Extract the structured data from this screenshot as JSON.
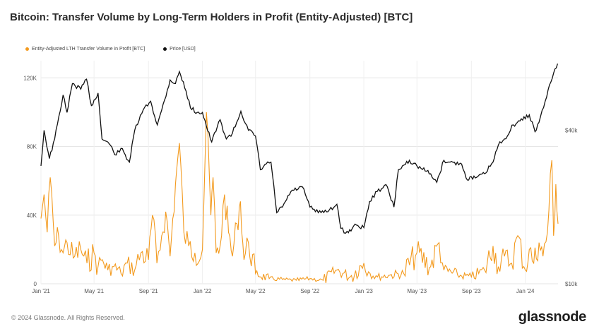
{
  "title": "Bitcoin: Transfer Volume by Long-Term Holders in Profit (Entity-Adjusted) [BTC]",
  "footer": "© 2024 Glassnode. All Rights Reserved.",
  "logo": "glassnode",
  "chart_data": {
    "type": "line",
    "title": "Bitcoin: Transfer Volume by Long-Term Holders in Profit (Entity-Adjusted) [BTC]",
    "legend_placement": "top-left",
    "grid": true,
    "x_ticks": [
      "Jan '21",
      "May '21",
      "Sep '21",
      "Jan '22",
      "May '22",
      "Sep '22",
      "Jan '23",
      "May '23",
      "Sep '23",
      "Jan '24"
    ],
    "x_range": [
      "2021-01-01",
      "2024-03-15"
    ],
    "y_left": {
      "ticks": [
        "0",
        "40K",
        "80K",
        "120K"
      ],
      "range": [
        0,
        130000
      ]
    },
    "y_right": {
      "ticks": [
        "$10k",
        "$40k"
      ],
      "scale": "log",
      "range": [
        10000,
        75000
      ]
    },
    "series": [
      {
        "name": "Entity-Adjusted LTH Transfer Volume in Profit [BTC]",
        "color": "#f39a1e",
        "axis": "left",
        "x": [
          "2021-01-01",
          "2021-01-08",
          "2021-01-15",
          "2021-01-22",
          "2021-02-01",
          "2021-02-10",
          "2021-02-20",
          "2021-03-01",
          "2021-03-15",
          "2021-04-01",
          "2021-04-15",
          "2021-05-01",
          "2021-05-10",
          "2021-05-20",
          "2021-06-01",
          "2021-06-15",
          "2021-07-01",
          "2021-07-15",
          "2021-08-01",
          "2021-08-15",
          "2021-09-01",
          "2021-09-10",
          "2021-09-20",
          "2021-10-01",
          "2021-10-10",
          "2021-10-20",
          "2021-11-01",
          "2021-11-10",
          "2021-11-20",
          "2021-12-01",
          "2021-12-15",
          "2022-01-01",
          "2022-01-10",
          "2022-01-20",
          "2022-01-25",
          "2022-02-01",
          "2022-02-10",
          "2022-02-20",
          "2022-03-01",
          "2022-03-10",
          "2022-03-20",
          "2022-03-28",
          "2022-04-05",
          "2022-04-15",
          "2022-05-01",
          "2022-06-01",
          "2022-07-01",
          "2022-08-01",
          "2022-09-01",
          "2022-10-01",
          "2022-11-01",
          "2022-12-01",
          "2023-01-01",
          "2023-01-15",
          "2023-02-01",
          "2023-03-01",
          "2023-04-01",
          "2023-05-01",
          "2023-06-01",
          "2023-06-20",
          "2023-07-01",
          "2023-08-01",
          "2023-09-01",
          "2023-10-01",
          "2023-10-20",
          "2023-11-01",
          "2023-11-15",
          "2023-12-01",
          "2023-12-15",
          "2024-01-01",
          "2024-01-10",
          "2024-01-20",
          "2024-02-01",
          "2024-02-10",
          "2024-02-20",
          "2024-03-01",
          "2024-03-05",
          "2024-03-10",
          "2024-03-15"
        ],
        "y": [
          38000,
          52000,
          30000,
          62000,
          22000,
          28000,
          18000,
          24000,
          15000,
          20000,
          12000,
          18000,
          10000,
          14000,
          8000,
          10000,
          6000,
          12000,
          8000,
          18000,
          14000,
          40000,
          12000,
          28000,
          42000,
          16000,
          58000,
          82000,
          30000,
          22000,
          18000,
          20000,
          100000,
          40000,
          62000,
          18000,
          22000,
          52000,
          30000,
          16000,
          35000,
          48000,
          14000,
          24000,
          6000,
          3000,
          2500,
          2000,
          3000,
          2000,
          8000,
          4000,
          12000,
          6000,
          4000,
          5000,
          6000,
          18000,
          10000,
          24000,
          8000,
          5000,
          4000,
          8000,
          22000,
          10000,
          16000,
          12000,
          28000,
          8000,
          20000,
          12000,
          24000,
          16000,
          30000,
          72000,
          28000,
          58000,
          35000
        ]
      },
      {
        "name": "Price [USD]",
        "color": "#111111",
        "axis": "right",
        "x": [
          "2021-01-01",
          "2021-01-08",
          "2021-01-20",
          "2021-02-01",
          "2021-02-20",
          "2021-03-01",
          "2021-03-13",
          "2021-04-01",
          "2021-04-14",
          "2021-04-25",
          "2021-05-10",
          "2021-05-19",
          "2021-06-01",
          "2021-06-20",
          "2021-07-01",
          "2021-07-20",
          "2021-08-01",
          "2021-08-20",
          "2021-09-06",
          "2021-09-21",
          "2021-10-01",
          "2021-10-20",
          "2021-11-01",
          "2021-11-10",
          "2021-11-25",
          "2021-12-05",
          "2021-12-20",
          "2022-01-01",
          "2022-01-10",
          "2022-01-22",
          "2022-02-10",
          "2022-02-24",
          "2022-03-10",
          "2022-03-29",
          "2022-04-15",
          "2022-05-01",
          "2022-05-12",
          "2022-05-25",
          "2022-06-05",
          "2022-06-18",
          "2022-07-01",
          "2022-07-20",
          "2022-08-15",
          "2022-09-01",
          "2022-09-20",
          "2022-10-15",
          "2022-11-01",
          "2022-11-10",
          "2022-11-21",
          "2022-12-15",
          "2023-01-01",
          "2023-01-14",
          "2023-01-31",
          "2023-02-20",
          "2023-03-10",
          "2023-03-20",
          "2023-04-14",
          "2023-05-01",
          "2023-06-01",
          "2023-06-15",
          "2023-07-01",
          "2023-07-15",
          "2023-08-10",
          "2023-08-20",
          "2023-09-10",
          "2023-10-01",
          "2023-10-20",
          "2023-11-01",
          "2023-11-15",
          "2023-12-05",
          "2023-12-20",
          "2024-01-10",
          "2024-01-23",
          "2024-02-01",
          "2024-02-15",
          "2024-02-28",
          "2024-03-05",
          "2024-03-14"
        ],
        "y": [
          29000,
          40000,
          31000,
          37000,
          55000,
          47000,
          61000,
          58000,
          63500,
          50000,
          56000,
          37000,
          36000,
          32000,
          34000,
          30000,
          40000,
          48000,
          52000,
          42000,
          48000,
          63000,
          61000,
          68000,
          57000,
          49000,
          47000,
          47000,
          41500,
          36000,
          44000,
          37000,
          39000,
          47500,
          40000,
          38000,
          28000,
          29500,
          30000,
          19000,
          20000,
          23000,
          24000,
          20000,
          19000,
          19500,
          20500,
          16500,
          15800,
          17000,
          16600,
          21000,
          23000,
          24500,
          20000,
          28000,
          30500,
          29000,
          27000,
          25000,
          30500,
          30000,
          29500,
          26000,
          26000,
          27000,
          30000,
          35000,
          37000,
          42000,
          43500,
          46000,
          39500,
          43000,
          52000,
          62000,
          67000,
          73000
        ]
      }
    ]
  }
}
